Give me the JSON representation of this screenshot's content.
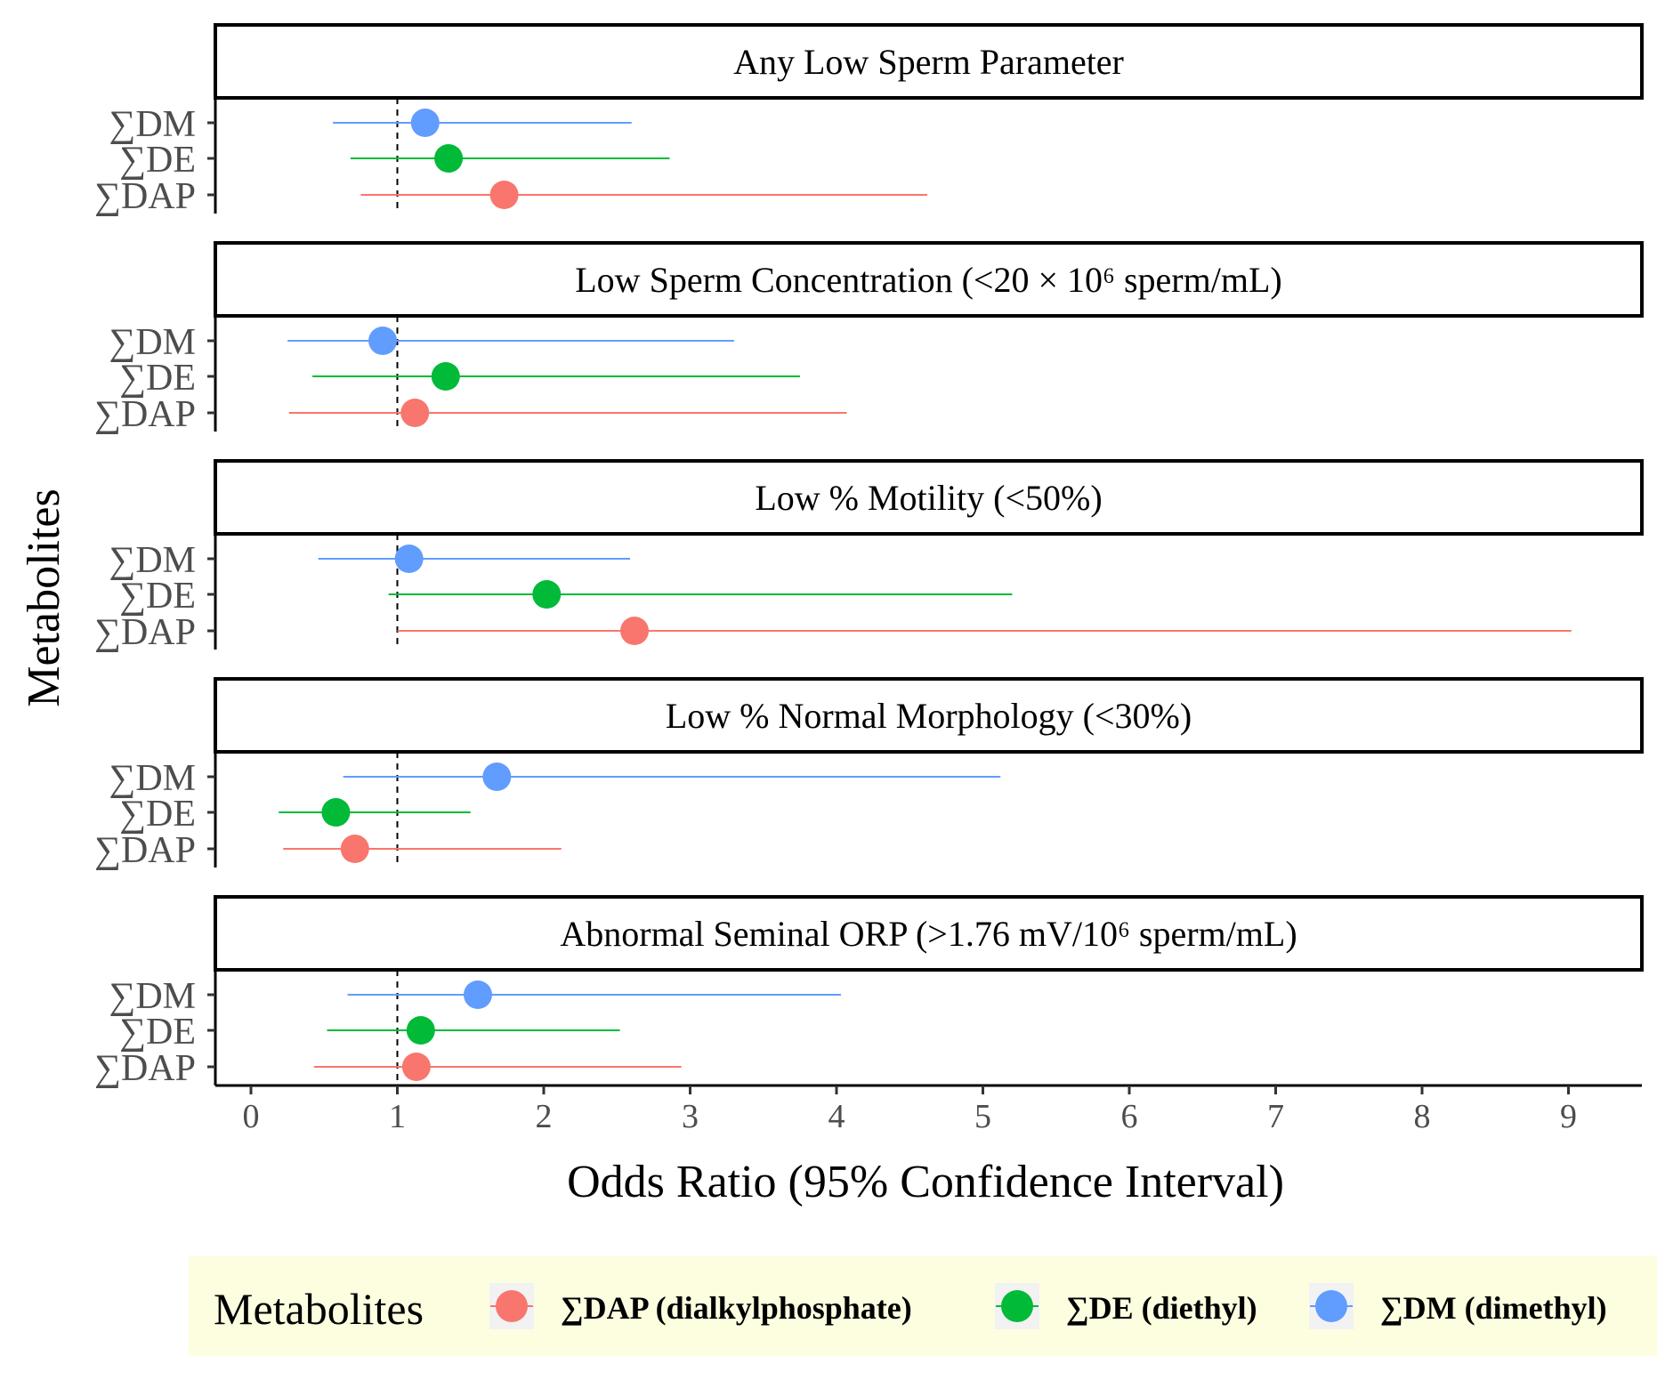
{
  "chart_data": {
    "type": "forest",
    "xlabel": "Odds Ratio (95% Confidence Interval)",
    "ylabel": "Metabolites",
    "xlim": [
      -0.25,
      9.5
    ],
    "x_ticks": [
      "0",
      "1",
      "2",
      "3",
      "4",
      "5",
      "6",
      "7",
      "8",
      "9"
    ],
    "reference_line": 1,
    "categories": [
      "∑DM",
      "∑DE",
      "∑DAP"
    ],
    "colors": {
      "∑DAP": "#F8766D",
      "∑DE": "#00BA38",
      "∑DM": "#619CFF"
    },
    "panels": [
      {
        "title": "Any Low Sperm Parameter",
        "rows": [
          {
            "metabolite": "∑DM",
            "or": 1.19,
            "lo": 0.56,
            "hi": 2.6
          },
          {
            "metabolite": "∑DE",
            "or": 1.35,
            "lo": 0.68,
            "hi": 2.86
          },
          {
            "metabolite": "∑DAP",
            "or": 1.73,
            "lo": 0.75,
            "hi": 4.62
          }
        ]
      },
      {
        "title": "Low Sperm Concentration (<20  × 10⁶ sperm/mL)",
        "rows": [
          {
            "metabolite": "∑DM",
            "or": 0.9,
            "lo": 0.25,
            "hi": 3.3
          },
          {
            "metabolite": "∑DE",
            "or": 1.33,
            "lo": 0.42,
            "hi": 3.75
          },
          {
            "metabolite": "∑DAP",
            "or": 1.12,
            "lo": 0.26,
            "hi": 4.07
          }
        ]
      },
      {
        "title": "Low % Motility (<50%)",
        "rows": [
          {
            "metabolite": "∑DM",
            "or": 1.08,
            "lo": 0.46,
            "hi": 2.59
          },
          {
            "metabolite": "∑DE",
            "or": 2.02,
            "lo": 0.94,
            "hi": 5.2
          },
          {
            "metabolite": "∑DAP",
            "or": 2.62,
            "lo": 1.0,
            "hi": 9.02
          }
        ]
      },
      {
        "title": "Low % Normal Morphology (<30%)",
        "rows": [
          {
            "metabolite": "∑DM",
            "or": 1.68,
            "lo": 0.63,
            "hi": 5.12
          },
          {
            "metabolite": "∑DE",
            "or": 0.58,
            "lo": 0.19,
            "hi": 1.5
          },
          {
            "metabolite": "∑DAP",
            "or": 0.71,
            "lo": 0.22,
            "hi": 2.12
          }
        ]
      },
      {
        "title": "Abnormal Seminal ORP (>1.76  mV/10⁶   sperm/mL)",
        "rows": [
          {
            "metabolite": "∑DM",
            "or": 1.55,
            "lo": 0.66,
            "hi": 4.03
          },
          {
            "metabolite": "∑DE",
            "or": 1.16,
            "lo": 0.52,
            "hi": 2.52
          },
          {
            "metabolite": "∑DAP",
            "or": 1.13,
            "lo": 0.43,
            "hi": 2.94
          }
        ]
      }
    ],
    "legend": {
      "title": "Metabolites",
      "position": "bottom",
      "items": [
        {
          "label": "∑DAP (dialkylphosphate)",
          "color": "#F8766D"
        },
        {
          "label": "∑DE (diethyl)",
          "color": "#00BA38"
        },
        {
          "label": "∑DM (dimethyl)",
          "color": "#619CFF"
        }
      ]
    }
  }
}
